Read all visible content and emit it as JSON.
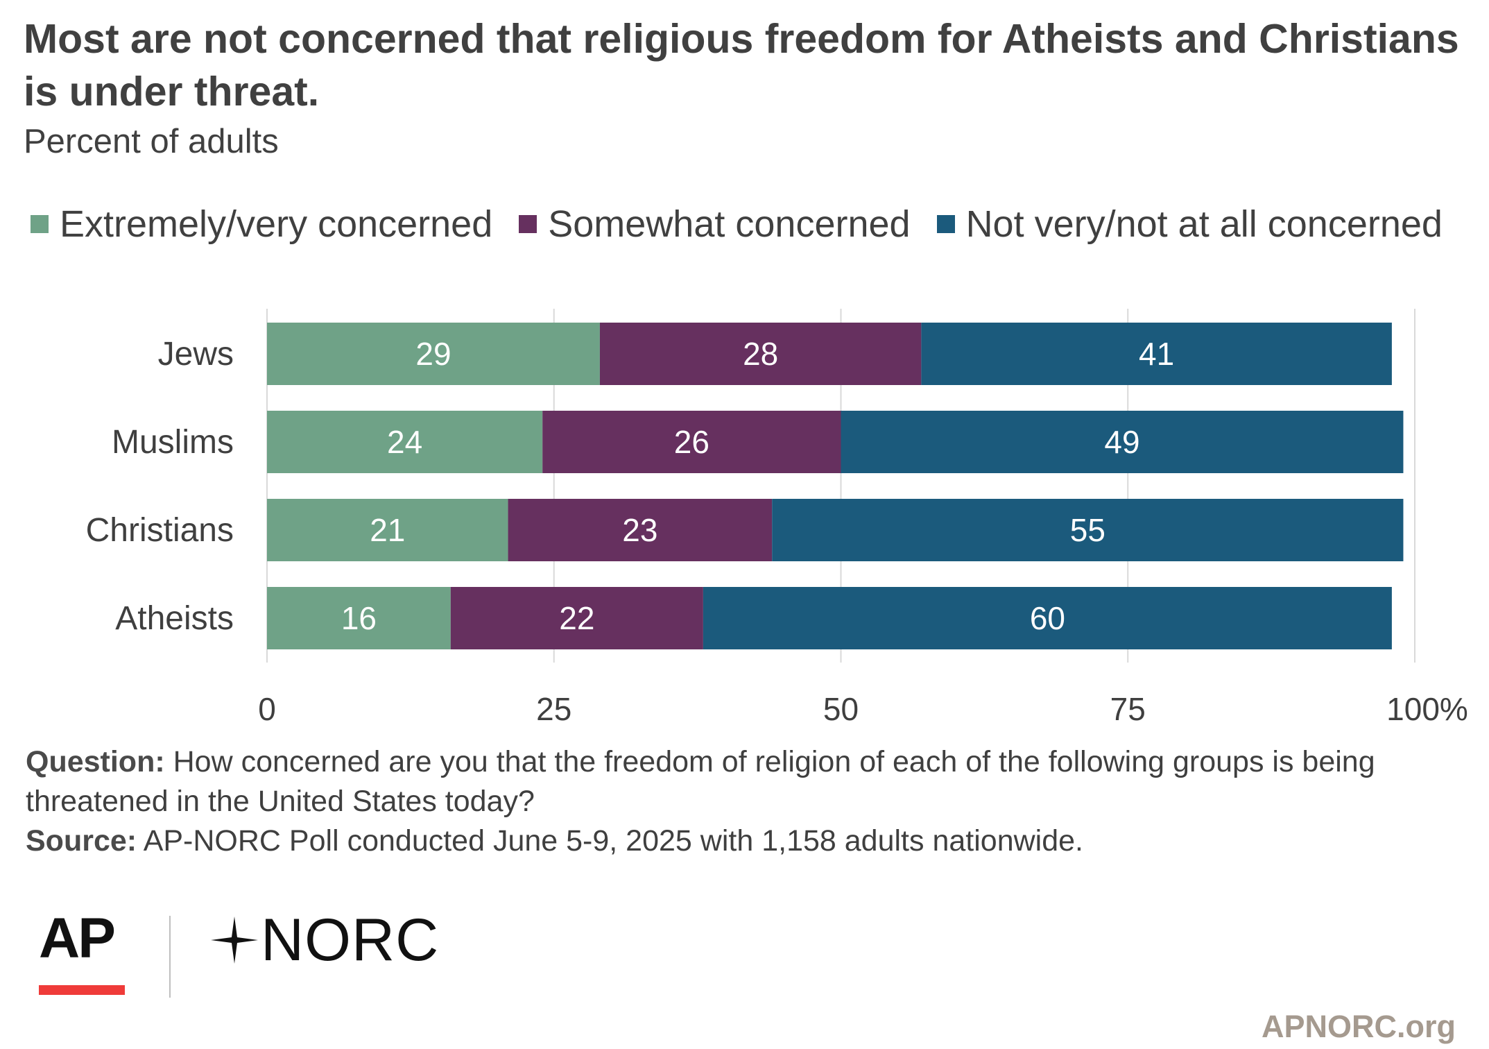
{
  "title": "Most are not concerned that religious freedom for Atheists and Christians is under threat.",
  "subtitle": "Percent of adults",
  "legend": [
    {
      "label": "Extremely/very concerned",
      "color": "#6fa287"
    },
    {
      "label": "Somewhat concerned",
      "color": "#66305f"
    },
    {
      "label": "Not very/not at all concerned",
      "color": "#1b5a7c"
    }
  ],
  "chart_data": {
    "type": "bar",
    "orientation": "horizontal",
    "stacked": true,
    "categories": [
      "Jews",
      "Muslims",
      "Christians",
      "Atheists"
    ],
    "series": [
      {
        "name": "Extremely/very concerned",
        "color": "#6fa287",
        "values": [
          29,
          24,
          21,
          16
        ]
      },
      {
        "name": "Somewhat concerned",
        "color": "#66305f",
        "values": [
          28,
          26,
          23,
          22
        ]
      },
      {
        "name": "Not very/not at all concerned",
        "color": "#1b5a7c",
        "values": [
          41,
          49,
          55,
          60
        ]
      }
    ],
    "xlim": [
      0,
      100
    ],
    "xticks": [
      "0",
      "25",
      "50",
      "75",
      "100%"
    ],
    "grid": true,
    "legend_position": "top"
  },
  "notes": {
    "question_label": "Question:",
    "question_text": "How concerned are you that the freedom of religion of each of the following groups is being threatened in the United States today?",
    "source_label": "Source:",
    "source_text": "AP-NORC Poll conducted June 5-9, 2025 with 1,158 adults nationwide."
  },
  "logos": {
    "ap": "AP",
    "norc": "NORC"
  },
  "site": "APNORC.org"
}
